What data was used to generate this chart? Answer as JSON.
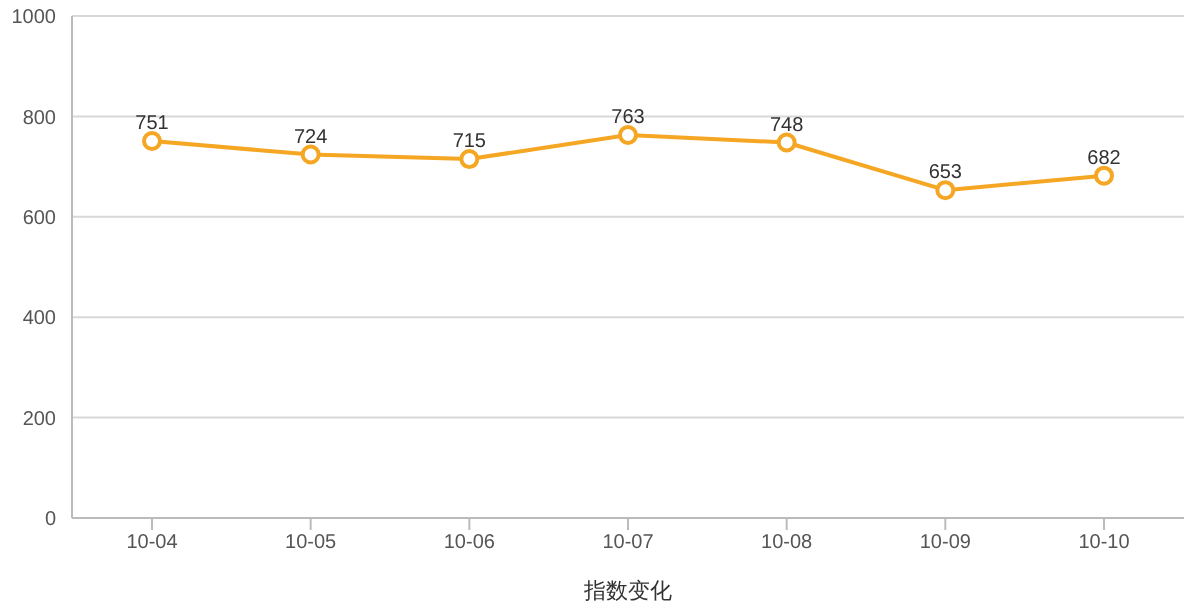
{
  "chart_data": {
    "type": "line",
    "xlabel": "指数变化",
    "categories": [
      "10-04",
      "10-05",
      "10-06",
      "10-07",
      "10-08",
      "10-09",
      "10-10"
    ],
    "series": [
      {
        "color": "#f5a623",
        "values": [
          751,
          724,
          715,
          763,
          748,
          653,
          682
        ]
      }
    ],
    "ylim": [
      0,
      1000
    ],
    "yticks": [
      0,
      200,
      400,
      600,
      800,
      1000
    ],
    "grid": "y",
    "marker": "circle",
    "data_labels": true
  }
}
